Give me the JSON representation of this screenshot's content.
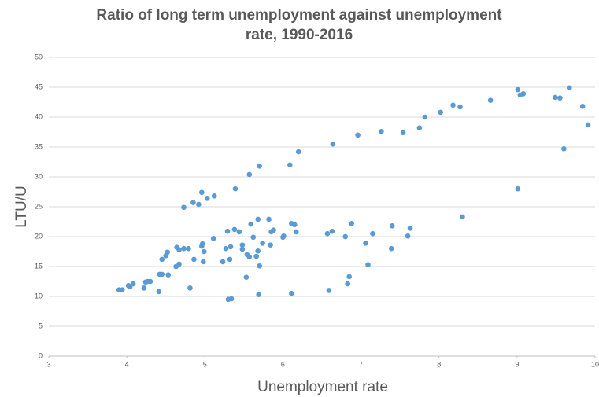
{
  "chart_data": {
    "type": "scatter",
    "title": "Ratio of long term unemployment against unemployment rate, 1990-2016",
    "x_label": "Unemployment rate",
    "y_label": "LTU/U",
    "xlim": [
      3,
      10
    ],
    "xticks": [
      3,
      4,
      5,
      6,
      7,
      8,
      9,
      10
    ],
    "ylim": [
      0,
      50
    ],
    "yticks": [
      0,
      5,
      10,
      15,
      20,
      25,
      30,
      35,
      40,
      45,
      50
    ],
    "grid": true,
    "series": [
      {
        "color": "#5b9bd5",
        "x": [
          3.9,
          3.94,
          4.02,
          4.04,
          4.08,
          4.22,
          4.24,
          4.27,
          4.3,
          4.41,
          4.42,
          4.45,
          4.45,
          4.5,
          4.52,
          4.53,
          4.63,
          4.67,
          4.64,
          4.67,
          4.73,
          4.79,
          4.73,
          4.81,
          4.85,
          4.92,
          4.86,
          4.96,
          4.97,
          4.99,
          4.98,
          4.96,
          5.03,
          5.12,
          5.11,
          5.23,
          5.27,
          5.29,
          5.32,
          5.33,
          5.3,
          5.34,
          5.39,
          5.38,
          5.44,
          5.48,
          5.48,
          5.54,
          5.57,
          5.53,
          5.57,
          5.59,
          5.62,
          5.66,
          5.68,
          5.68,
          5.7,
          5.7,
          5.69,
          5.74,
          5.82,
          5.84,
          5.85,
          5.88,
          6.0,
          6.01,
          6.09,
          6.11,
          6.15,
          6.17,
          6.11,
          6.2,
          6.57,
          6.59,
          6.63,
          6.64,
          6.8,
          6.83,
          6.85,
          6.88,
          6.96,
          7.06,
          7.09,
          7.15,
          7.26,
          7.4,
          7.39,
          7.54,
          7.6,
          7.63,
          7.75,
          7.82,
          8.02,
          8.18,
          8.27,
          8.3,
          8.66,
          9.01,
          9.04,
          9.08,
          9.01,
          9.49,
          9.55,
          9.6,
          9.67,
          9.84,
          9.91
        ],
        "values": [
          11.1,
          11.1,
          11.8,
          11.6,
          12.1,
          11.4,
          12.4,
          12.5,
          12.5,
          10.8,
          13.7,
          13.7,
          16.2,
          16.8,
          17.4,
          13.6,
          15.0,
          15.4,
          18.2,
          17.8,
          18.0,
          18.0,
          24.9,
          11.4,
          25.7,
          25.4,
          16.2,
          18.4,
          18.8,
          17.5,
          15.8,
          27.4,
          26.4,
          26.8,
          19.7,
          15.8,
          18.0,
          20.9,
          16.2,
          18.3,
          9.5,
          9.6,
          28.0,
          21.2,
          20.8,
          18.6,
          17.9,
          17.0,
          16.6,
          13.2,
          30.4,
          22.1,
          19.9,
          16.7,
          17.6,
          22.9,
          31.8,
          15.1,
          10.3,
          18.9,
          22.9,
          18.6,
          20.8,
          21.1,
          19.9,
          20.1,
          32.0,
          22.2,
          22.0,
          20.8,
          10.5,
          34.2,
          20.5,
          11.0,
          20.9,
          35.5,
          20.0,
          12.1,
          13.3,
          22.2,
          37.0,
          18.9,
          15.3,
          20.5,
          37.6,
          21.8,
          18.0,
          37.4,
          20.1,
          21.4,
          38.2,
          40.0,
          40.8,
          42.0,
          41.7,
          23.3,
          42.8,
          44.6,
          43.7,
          43.9,
          28.0,
          43.3,
          43.2,
          34.7,
          44.9,
          41.8,
          38.7
        ]
      }
    ]
  }
}
